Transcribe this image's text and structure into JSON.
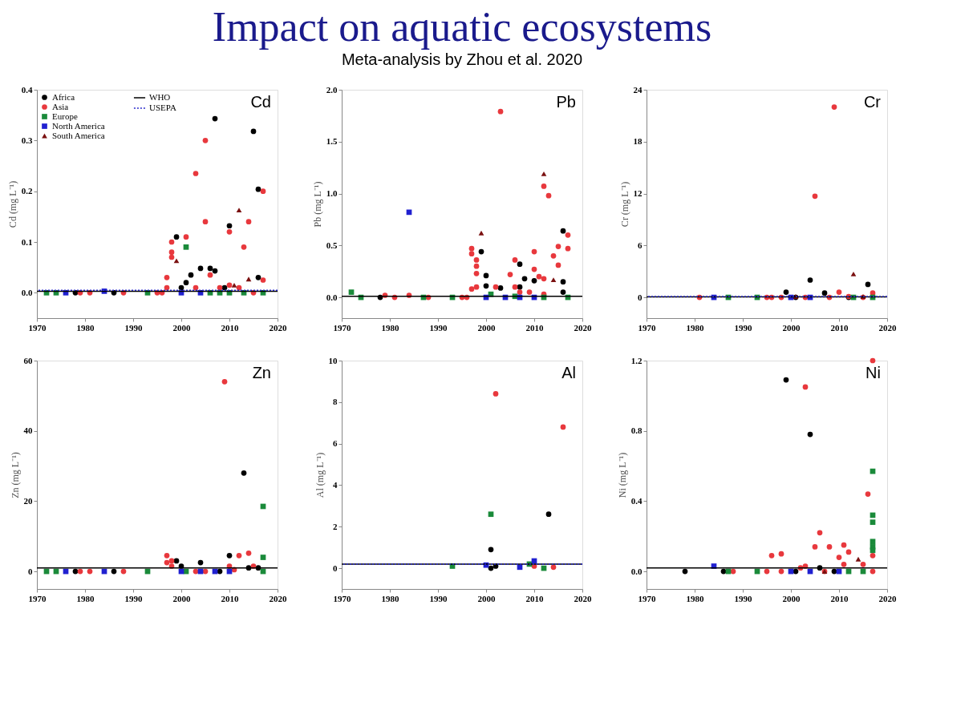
{
  "chart_data": [
    {
      "type": "scatter",
      "annotations": [
        "Cd"
      ],
      "ylabel": "Cd (mg L⁻¹)",
      "xlim": [
        1970,
        2020
      ],
      "xticks": [
        1970,
        1980,
        1990,
        2000,
        2010,
        2020
      ],
      "ylim": [
        -0.05,
        0.4
      ],
      "yticks": [
        {
          "value": 0,
          "label": "0.0"
        },
        0.1,
        0.2,
        0.3,
        0.4
      ],
      "legend": "top left",
      "grid": false,
      "series": [
        {
          "name": "Africa",
          "color": "#000000",
          "marker": "circle",
          "x": [
            1978,
            1986,
            1999,
            2000,
            2001,
            2002,
            2004,
            2006,
            2007,
            2007,
            2010,
            2015,
            2016,
            2016,
            2009
          ],
          "values": [
            0.0,
            0.0,
            0.11,
            0.01,
            0.02,
            0.035,
            0.048,
            0.048,
            0.343,
            0.043,
            0.132,
            0.318,
            0.204,
            0.03,
            0.01
          ]
        },
        {
          "name": "Asia",
          "color": "#e8383d",
          "marker": "circle",
          "x": [
            1979,
            1981,
            1988,
            1995,
            1996,
            1997,
            1997,
            1998,
            1998,
            1998,
            2001,
            2003,
            2005,
            2005,
            2006,
            2010,
            2013,
            2014,
            2017,
            2017,
            2008,
            2010,
            2012,
            2003,
            2015
          ],
          "values": [
            0.0,
            0.0,
            0.0,
            0.0,
            0.0,
            0.01,
            0.03,
            0.1,
            0.08,
            0.07,
            0.11,
            0.235,
            0.3,
            0.14,
            0.035,
            0.12,
            0.09,
            0.14,
            0.2,
            0.025,
            0.01,
            0.015,
            0.01,
            0.01,
            0.0
          ]
        },
        {
          "name": "Europe",
          "color": "#1a8a3a",
          "marker": "square",
          "x": [
            1972,
            1974,
            1993,
            2001,
            2006,
            2010,
            2013,
            2017,
            2008
          ],
          "values": [
            0.0,
            0.0,
            0.0,
            0.09,
            0.0,
            0.0,
            0.0,
            0.0,
            0.0
          ]
        },
        {
          "name": "North America",
          "color": "#2020d0",
          "marker": "square",
          "x": [
            1976,
            1984,
            2000,
            2004
          ],
          "values": [
            0.0,
            0.003,
            0.0,
            0.0
          ]
        },
        {
          "name": "South America",
          "color": "#7a1010",
          "marker": "triangle",
          "x": [
            1999,
            2012,
            2014,
            2011
          ],
          "values": [
            0.063,
            0.163,
            0.027,
            0.015
          ]
        }
      ],
      "ref_lines": [
        {
          "axis": "y",
          "value": 0.003,
          "label": "WHO",
          "color": "#000000",
          "line_style": "solid"
        },
        {
          "axis": "y",
          "value": 0.005,
          "label": "USEPA",
          "color": "#2b2bcc",
          "line_style": "dotted"
        }
      ]
    },
    {
      "type": "scatter",
      "title": "Impact on aquatic ecosystems",
      "subtitle": "Meta-analysis by Zhou et al. 2020",
      "annotations": [
        "Pb"
      ],
      "ylabel": "Pb (mg L⁻¹)",
      "xlim": [
        1970,
        2020
      ],
      "xticks": [
        1970,
        1980,
        1990,
        2000,
        2010,
        2020
      ],
      "ylim": [
        -0.2,
        2.0
      ],
      "yticks": [
        {
          "value": 0,
          "label": "0.0"
        },
        0.5,
        {
          "value": 1,
          "label": "1.0"
        },
        1.5,
        {
          "value": 2,
          "label": "2.0"
        }
      ],
      "grid": false,
      "series": [
        {
          "color": "#000000",
          "marker": "circle",
          "x": [
            1978,
            1999,
            2000,
            2000,
            2003,
            2007,
            2008,
            2010,
            2016,
            2016,
            2016,
            2007
          ],
          "values": [
            0.0,
            0.44,
            0.21,
            0.11,
            0.09,
            0.32,
            0.18,
            0.16,
            0.64,
            0.15,
            0.05,
            0.1
          ]
        },
        {
          "color": "#e8383d",
          "marker": "circle",
          "x": [
            1979,
            1981,
            1984,
            1988,
            1995,
            1996,
            1997,
            1997,
            1998,
            1998,
            1998,
            1997,
            1998,
            2002,
            2003,
            2005,
            2006,
            2006,
            2007,
            2010,
            2010,
            2011,
            2012,
            2012,
            2013,
            2014,
            2015,
            2015,
            2017,
            2017,
            2009,
            2012
          ],
          "values": [
            0.02,
            0.0,
            0.02,
            0.0,
            0.0,
            0.0,
            0.47,
            0.42,
            0.36,
            0.3,
            0.23,
            0.08,
            0.1,
            0.1,
            1.79,
            0.22,
            0.36,
            0.1,
            0.05,
            0.44,
            0.27,
            0.2,
            1.07,
            0.18,
            0.98,
            0.4,
            0.49,
            0.31,
            0.6,
            0.47,
            0.05,
            0.03
          ]
        },
        {
          "color": "#1a8a3a",
          "marker": "square",
          "x": [
            1972,
            1974,
            1987,
            1993,
            2001,
            2012,
            2017,
            2006
          ],
          "values": [
            0.05,
            0.0,
            0.0,
            0.0,
            0.03,
            0.0,
            0.0,
            0.01
          ]
        },
        {
          "color": "#2020d0",
          "marker": "square",
          "x": [
            1984,
            2000,
            2004,
            2010,
            2007
          ],
          "values": [
            0.82,
            0.0,
            0.0,
            0.0,
            0.0
          ]
        },
        {
          "color": "#7a1010",
          "marker": "triangle",
          "x": [
            1999,
            2012,
            2014
          ],
          "values": [
            0.62,
            1.19,
            0.17
          ]
        }
      ],
      "ref_lines": [
        {
          "axis": "y",
          "value": 0.01,
          "color": "#000000",
          "line_style": "solid"
        }
      ]
    },
    {
      "type": "scatter",
      "annotations": [
        "Cr"
      ],
      "ylabel": "Cr (mg L⁻¹)",
      "xlim": [
        1970,
        2020
      ],
      "xticks": [
        1970,
        1980,
        1990,
        2000,
        2010,
        2020
      ],
      "ylim": [
        -2.4,
        24
      ],
      "yticks": [
        0,
        6,
        12,
        18,
        24
      ],
      "grid": false,
      "series": [
        {
          "color": "#000000",
          "marker": "circle",
          "x": [
            1999,
            2004,
            2007,
            2016,
            2001,
            2012
          ],
          "values": [
            0.6,
            2.0,
            0.5,
            1.5,
            0.0,
            0.0
          ]
        },
        {
          "color": "#e8383d",
          "marker": "circle",
          "x": [
            1981,
            1995,
            1996,
            1998,
            2005,
            2009,
            2010,
            2017,
            2015,
            2008,
            2003,
            2012
          ],
          "values": [
            0.0,
            0.0,
            0.0,
            0.0,
            11.7,
            22.0,
            0.6,
            0.5,
            0.0,
            0.0,
            0.0,
            0.1
          ]
        },
        {
          "color": "#1a8a3a",
          "marker": "square",
          "x": [
            1987,
            1993,
            2013,
            2017
          ],
          "values": [
            0.0,
            0.0,
            0.0,
            0.0
          ]
        },
        {
          "color": "#2020d0",
          "marker": "square",
          "x": [
            1984,
            2000,
            2004
          ],
          "values": [
            0.0,
            0.0,
            0.0
          ]
        },
        {
          "color": "#7a1010",
          "marker": "triangle",
          "x": [
            2013,
            2001,
            2015
          ],
          "values": [
            2.7,
            0.1,
            0.1
          ]
        }
      ],
      "ref_lines": [
        {
          "axis": "y",
          "value": 0.05,
          "color": "#000000",
          "line_style": "solid"
        },
        {
          "axis": "y",
          "value": 0.1,
          "color": "#2b2bcc",
          "line_style": "dotted"
        }
      ]
    },
    {
      "type": "scatter",
      "annotations": [
        "Zn"
      ],
      "ylabel": "Zn (mg L⁻¹)",
      "xlim": [
        1970,
        2020
      ],
      "xticks": [
        1970,
        1980,
        1990,
        2000,
        2010,
        2020
      ],
      "ylim": [
        -5,
        60
      ],
      "yticks": [
        0,
        20,
        40,
        60
      ],
      "grid": false,
      "series": [
        {
          "color": "#000000",
          "marker": "circle",
          "x": [
            1978,
            1986,
            1999,
            2000,
            2004,
            2010,
            2013,
            2016,
            2014,
            2008
          ],
          "values": [
            0,
            0,
            3,
            1.5,
            2.5,
            4.5,
            28,
            1,
            1,
            0
          ]
        },
        {
          "color": "#e8383d",
          "marker": "circle",
          "x": [
            1979,
            1981,
            1988,
            1997,
            1997,
            1998,
            1998,
            2009,
            2010,
            2012,
            2014,
            2015,
            2005,
            2011,
            2003
          ],
          "values": [
            0,
            0,
            0,
            4.5,
            2.5,
            1.5,
            3,
            54,
            1.5,
            4.5,
            5.2,
            1.5,
            0,
            0.5,
            0
          ]
        },
        {
          "color": "#1a8a3a",
          "marker": "square",
          "x": [
            1972,
            1974,
            1993,
            2017,
            2017,
            2017,
            2001
          ],
          "values": [
            0,
            0,
            0,
            18.5,
            4,
            0,
            0
          ]
        },
        {
          "color": "#2020d0",
          "marker": "square",
          "x": [
            1976,
            1984,
            2000,
            2004,
            2007,
            2010
          ],
          "values": [
            0,
            0,
            0,
            0,
            0,
            0
          ]
        }
      ],
      "ref_lines": [
        {
          "axis": "y",
          "value": 1,
          "color": "#000000",
          "line_style": "solid"
        }
      ]
    },
    {
      "type": "scatter",
      "annotations": [
        "Al"
      ],
      "ylabel": "Al (mg L⁻¹)",
      "xlim": [
        1970,
        2020
      ],
      "xticks": [
        1970,
        1980,
        1990,
        2000,
        2010,
        2020
      ],
      "ylim": [
        -1,
        10
      ],
      "yticks": [
        0,
        2,
        4,
        6,
        8,
        10
      ],
      "grid": false,
      "series": [
        {
          "color": "#000000",
          "marker": "circle",
          "x": [
            2001,
            2001,
            2002,
            2013
          ],
          "values": [
            0.9,
            0.0,
            0.1,
            2.6
          ]
        },
        {
          "color": "#e8383d",
          "marker": "circle",
          "x": [
            2002,
            2016,
            2010,
            2014
          ],
          "values": [
            8.4,
            6.8,
            0.1,
            0.05
          ]
        },
        {
          "color": "#1a8a3a",
          "marker": "square",
          "x": [
            1993,
            2001,
            2009,
            2012
          ],
          "values": [
            0.1,
            2.6,
            0.2,
            0.0
          ]
        },
        {
          "color": "#2020d0",
          "marker": "square",
          "x": [
            2000,
            2007,
            2010
          ],
          "values": [
            0.15,
            0.05,
            0.35
          ]
        }
      ],
      "ref_lines": [
        {
          "axis": "y",
          "value": 0.2,
          "color": "#000000",
          "line_style": "solid"
        },
        {
          "axis": "y",
          "value": 0.2,
          "color": "#2b2bcc",
          "line_style": "dotted"
        }
      ]
    },
    {
      "type": "scatter",
      "annotations": [
        "Ni"
      ],
      "ylabel": "Ni (mg L⁻¹)",
      "xlim": [
        1970,
        2020
      ],
      "xticks": [
        1970,
        1980,
        1990,
        2000,
        2010,
        2020
      ],
      "ylim": [
        -0.1,
        1.2
      ],
      "yticks": [
        {
          "value": 0,
          "label": "0.0"
        },
        0.4,
        0.8,
        1.2
      ],
      "grid": false,
      "series": [
        {
          "color": "#000000",
          "marker": "circle",
          "x": [
            1978,
            1986,
            1999,
            2004,
            2001,
            2006,
            2009
          ],
          "values": [
            0.0,
            0.0,
            1.09,
            0.78,
            0.0,
            0.02,
            0.0
          ]
        },
        {
          "color": "#e8383d",
          "marker": "circle",
          "x": [
            1988,
            1995,
            1996,
            1998,
            1998,
            2003,
            2002,
            2003,
            2005,
            2006,
            2008,
            2010,
            2011,
            2012,
            2016,
            2017,
            2017,
            2017,
            2011,
            2015,
            2007
          ],
          "values": [
            0.0,
            0.0,
            0.09,
            0.1,
            0.0,
            1.05,
            0.02,
            0.03,
            0.14,
            0.22,
            0.14,
            0.08,
            0.15,
            0.11,
            0.44,
            1.2,
            0.09,
            0.0,
            0.04,
            0.04,
            0.0
          ]
        },
        {
          "color": "#1a8a3a",
          "marker": "square",
          "x": [
            1987,
            1993,
            2012,
            2015,
            2017,
            2017,
            2017,
            2017,
            2017,
            2017
          ],
          "values": [
            0.0,
            0.0,
            0.0,
            0.0,
            0.57,
            0.32,
            0.28,
            0.17,
            0.14,
            0.12
          ]
        },
        {
          "color": "#2020d0",
          "marker": "square",
          "x": [
            1984,
            2000,
            2004,
            2010
          ],
          "values": [
            0.03,
            0.0,
            0.0,
            0.0
          ]
        },
        {
          "color": "#7a1010",
          "marker": "triangle",
          "x": [
            2014,
            2007
          ],
          "values": [
            0.07,
            0.0
          ]
        }
      ],
      "ref_lines": [
        {
          "axis": "y",
          "value": 0.02,
          "color": "#000000",
          "line_style": "solid"
        }
      ]
    }
  ]
}
